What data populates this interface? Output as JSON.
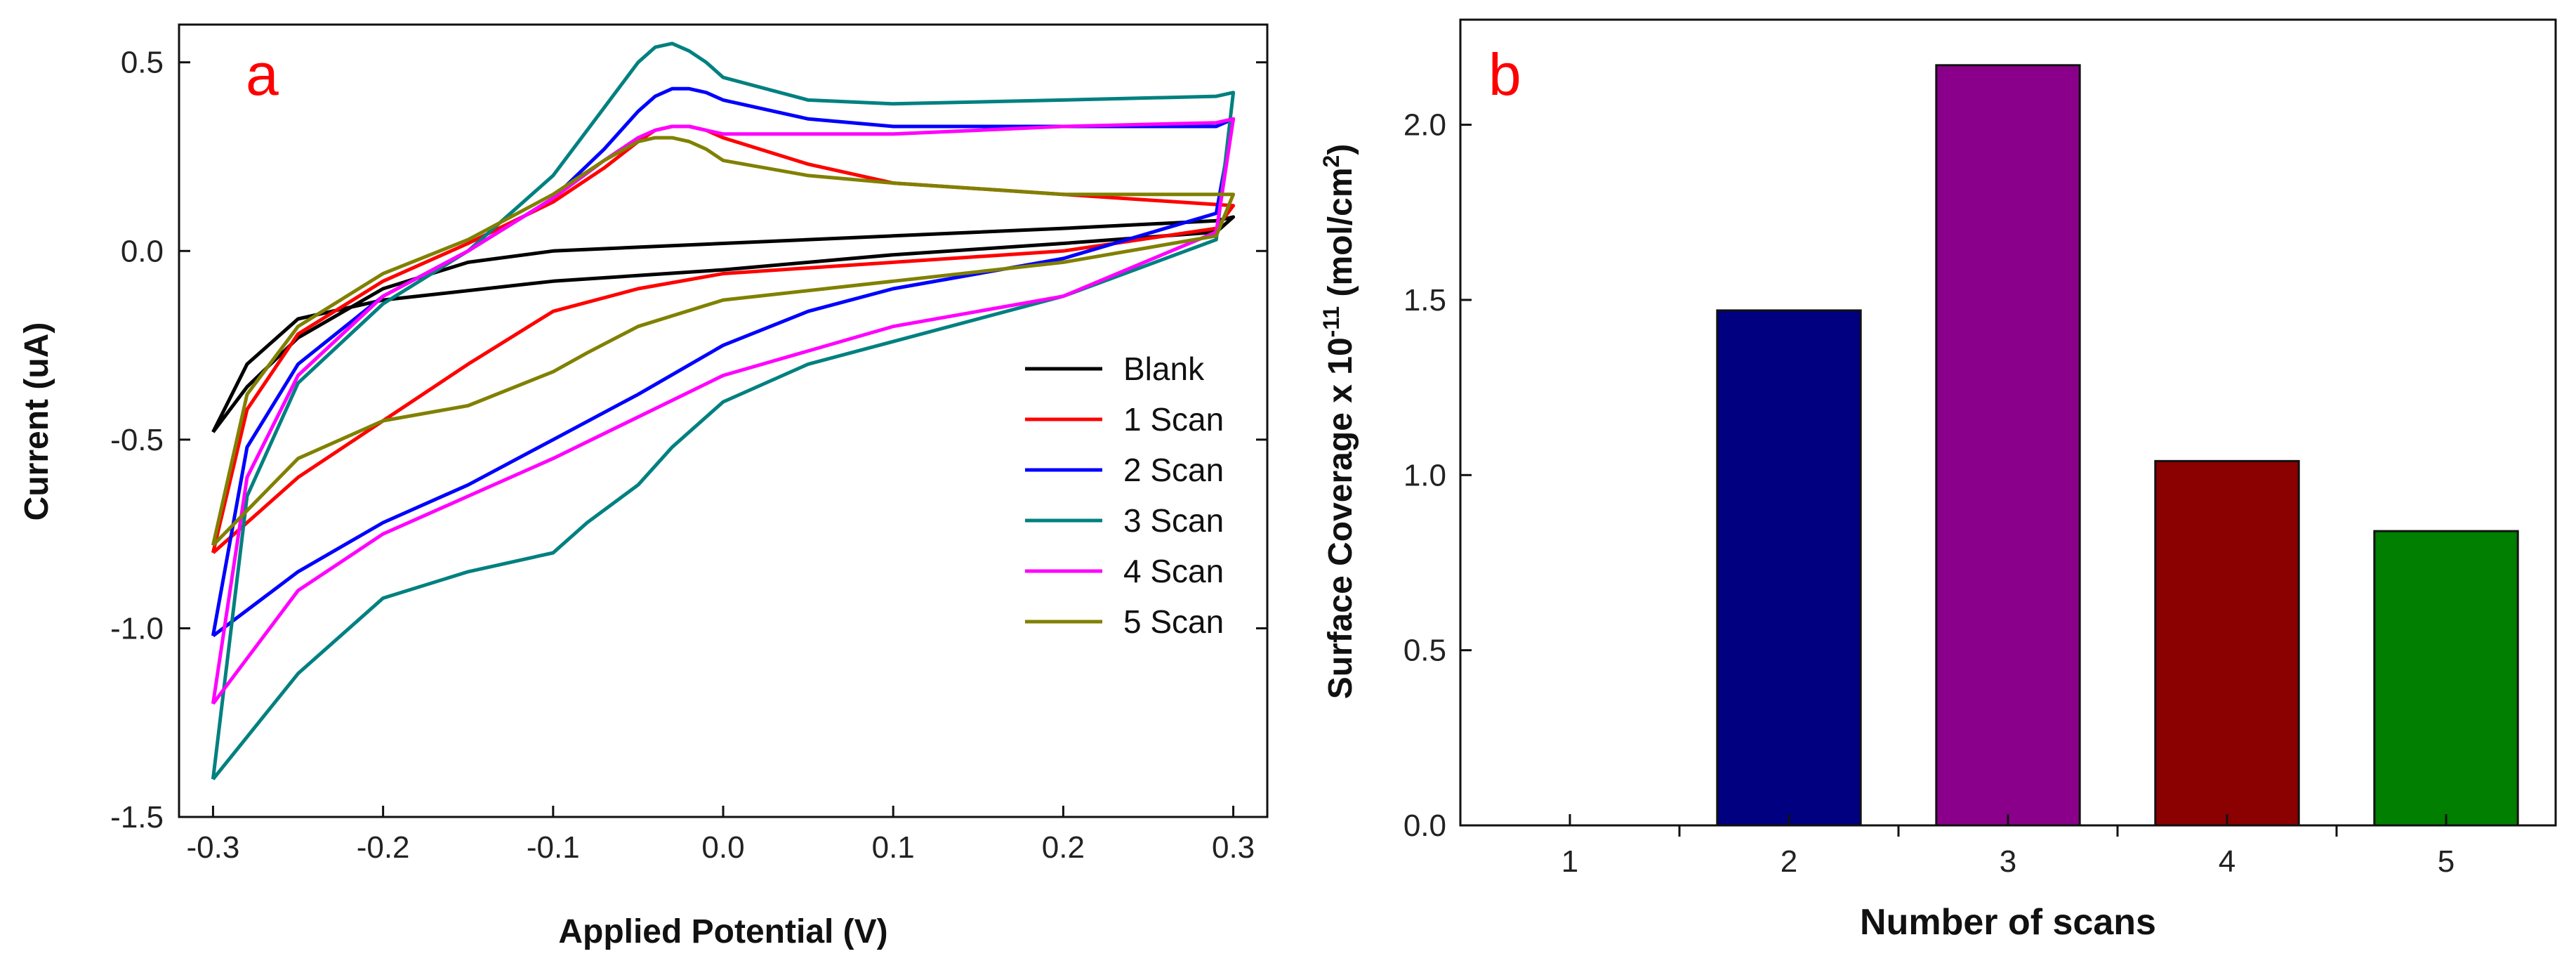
{
  "chart_data": [
    {
      "type": "line",
      "panel_label": "a",
      "title": "",
      "xlabel": "Applied Potential (V)",
      "ylabel": "Current (uA)",
      "xlim": [
        -0.32,
        0.32
      ],
      "ylim": [
        -1.5,
        0.6
      ],
      "xticks": [
        -0.3,
        -0.2,
        -0.1,
        0.0,
        0.1,
        0.2,
        0.3
      ],
      "xtick_labels": [
        "-0.3",
        "-0.2",
        "-0.1",
        "0.0",
        "0.1",
        "0.2",
        "0.3"
      ],
      "yticks": [
        -1.5,
        -1.0,
        -0.5,
        0.0,
        0.5
      ],
      "ytick_labels": [
        "-1.5",
        "-1.0",
        "-0.5",
        "0.0",
        "0.5"
      ],
      "legend_position": "right",
      "series": [
        {
          "name": "Blank",
          "color": "#000000",
          "x": [
            -0.3,
            -0.28,
            -0.25,
            -0.2,
            -0.15,
            -0.1,
            -0.05,
            0.0,
            0.1,
            0.2,
            0.29,
            0.3,
            0.29,
            0.2,
            0.1,
            0.0,
            -0.1,
            -0.2,
            -0.25,
            -0.28,
            -0.3
          ],
          "y": [
            -0.48,
            -0.36,
            -0.23,
            -0.1,
            -0.03,
            0.0,
            0.01,
            0.02,
            0.04,
            0.06,
            0.08,
            0.09,
            0.05,
            0.02,
            -0.01,
            -0.05,
            -0.08,
            -0.13,
            -0.18,
            -0.3,
            -0.48
          ]
        },
        {
          "name": "1 Scan",
          "color": "#ff0000",
          "x": [
            -0.3,
            -0.28,
            -0.25,
            -0.2,
            -0.15,
            -0.1,
            -0.07,
            -0.05,
            -0.04,
            -0.03,
            -0.02,
            -0.01,
            0.0,
            0.05,
            0.1,
            0.2,
            0.3,
            0.29,
            0.2,
            0.1,
            0.0,
            -0.05,
            -0.1,
            -0.15,
            -0.2,
            -0.25,
            -0.3
          ],
          "y": [
            -0.8,
            -0.42,
            -0.22,
            -0.08,
            0.02,
            0.13,
            0.22,
            0.29,
            0.32,
            0.33,
            0.33,
            0.32,
            0.3,
            0.23,
            0.18,
            0.15,
            0.12,
            0.06,
            0.0,
            -0.03,
            -0.06,
            -0.1,
            -0.16,
            -0.3,
            -0.45,
            -0.6,
            -0.8
          ]
        },
        {
          "name": "2 Scan",
          "color": "#0000ff",
          "x": [
            -0.3,
            -0.28,
            -0.25,
            -0.2,
            -0.15,
            -0.1,
            -0.07,
            -0.05,
            -0.04,
            -0.03,
            -0.02,
            -0.01,
            0.0,
            0.05,
            0.1,
            0.2,
            0.29,
            0.3,
            0.29,
            0.2,
            0.1,
            0.05,
            0.0,
            -0.05,
            -0.1,
            -0.15,
            -0.2,
            -0.25,
            -0.3
          ],
          "y": [
            -1.02,
            -0.52,
            -0.3,
            -0.12,
            0.0,
            0.14,
            0.27,
            0.37,
            0.41,
            0.43,
            0.43,
            0.42,
            0.4,
            0.35,
            0.33,
            0.33,
            0.33,
            0.35,
            0.1,
            -0.02,
            -0.1,
            -0.16,
            -0.25,
            -0.38,
            -0.5,
            -0.62,
            -0.72,
            -0.85,
            -1.02
          ]
        },
        {
          "name": "3 Scan",
          "color": "#008080",
          "x": [
            -0.3,
            -0.28,
            -0.25,
            -0.2,
            -0.15,
            -0.1,
            -0.07,
            -0.05,
            -0.04,
            -0.03,
            -0.02,
            -0.01,
            0.0,
            0.05,
            0.1,
            0.2,
            0.29,
            0.3,
            0.29,
            0.2,
            0.1,
            0.05,
            0.0,
            -0.03,
            -0.05,
            -0.08,
            -0.1,
            -0.15,
            -0.2,
            -0.25,
            -0.3
          ],
          "y": [
            -1.4,
            -0.65,
            -0.35,
            -0.14,
            0.0,
            0.2,
            0.38,
            0.5,
            0.54,
            0.55,
            0.53,
            0.5,
            0.46,
            0.4,
            0.39,
            0.4,
            0.41,
            0.42,
            0.03,
            -0.12,
            -0.24,
            -0.3,
            -0.4,
            -0.52,
            -0.62,
            -0.72,
            -0.8,
            -0.85,
            -0.92,
            -1.12,
            -1.4
          ]
        },
        {
          "name": "4 Scan",
          "color": "#ff00ff",
          "x": [
            -0.3,
            -0.28,
            -0.25,
            -0.2,
            -0.15,
            -0.1,
            -0.07,
            -0.05,
            -0.04,
            -0.03,
            -0.02,
            -0.01,
            0.0,
            0.05,
            0.1,
            0.2,
            0.29,
            0.3,
            0.29,
            0.2,
            0.1,
            0.0,
            -0.05,
            -0.1,
            -0.15,
            -0.2,
            -0.25,
            -0.3
          ],
          "y": [
            -1.2,
            -0.6,
            -0.33,
            -0.12,
            0.0,
            0.14,
            0.24,
            0.3,
            0.32,
            0.33,
            0.33,
            0.32,
            0.31,
            0.31,
            0.31,
            0.33,
            0.34,
            0.35,
            0.05,
            -0.12,
            -0.2,
            -0.33,
            -0.44,
            -0.55,
            -0.65,
            -0.75,
            -0.9,
            -1.2
          ]
        },
        {
          "name": "5 Scan",
          "color": "#808000",
          "x": [
            -0.3,
            -0.28,
            -0.25,
            -0.2,
            -0.15,
            -0.1,
            -0.07,
            -0.05,
            -0.04,
            -0.03,
            -0.02,
            -0.01,
            0.0,
            0.05,
            0.1,
            0.2,
            0.3,
            0.29,
            0.2,
            0.1,
            0.0,
            -0.05,
            -0.08,
            -0.1,
            -0.15,
            -0.2,
            -0.25,
            -0.3
          ],
          "y": [
            -0.78,
            -0.38,
            -0.2,
            -0.06,
            0.03,
            0.15,
            0.24,
            0.29,
            0.3,
            0.3,
            0.29,
            0.27,
            0.24,
            0.2,
            0.18,
            0.15,
            0.15,
            0.04,
            -0.03,
            -0.08,
            -0.13,
            -0.2,
            -0.27,
            -0.32,
            -0.41,
            -0.45,
            -0.55,
            -0.78
          ]
        }
      ]
    },
    {
      "type": "bar",
      "panel_label": "b",
      "title": "",
      "xlabel": "Number of scans",
      "ylabel_main": "Surface Coverage x 10",
      "ylabel_exp1": "-11",
      "ylabel_unit": " (mol/cm",
      "ylabel_exp2": "2",
      "ylabel_close": ")",
      "categories": [
        "1",
        "2",
        "3",
        "4",
        "5"
      ],
      "values": [
        0,
        1.47,
        2.17,
        1.04,
        0.84
      ],
      "bar_colors": [
        "#ffffff",
        "#000080",
        "#8b008b",
        "#8b0000",
        "#007f00"
      ],
      "ylim": [
        0,
        2.3
      ],
      "yticks": [
        0.0,
        0.5,
        1.0,
        1.5,
        2.0
      ],
      "ytick_labels": [
        "0.0",
        "0.5",
        "1.0",
        "1.5",
        "2.0"
      ]
    }
  ]
}
